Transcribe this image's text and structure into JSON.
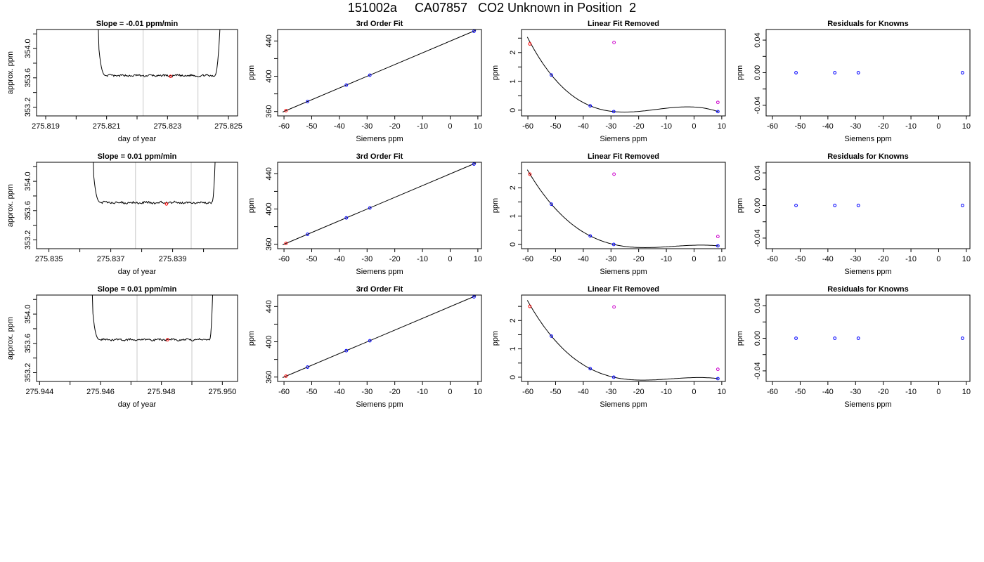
{
  "title": "151002a     CA07857   CO2 Unknown in Position  2",
  "colors": {
    "trace": "#000000",
    "known": "#0000ff",
    "reference": "#ff0000",
    "unknown": "#cc00cc",
    "window": "#c8c8c8"
  },
  "chart_data": [
    {
      "type": "line",
      "title": "Slope =  -0.01  ppm/min",
      "xlabel": "day of year",
      "ylabel": "approx. ppm",
      "xlim": [
        275.8187,
        275.8253
      ],
      "ylim": [
        353.08,
        354.26
      ],
      "xticks": [
        275.819,
        275.821,
        275.823,
        275.825
      ],
      "xminor": [
        275.82,
        275.822,
        275.824
      ],
      "yticks": [
        353.2,
        353.6,
        354.0
      ],
      "yminor": [
        353.4,
        353.8,
        354.2
      ],
      "trace": {
        "start": 275.8207,
        "level_start": 275.821,
        "level_end": 275.82455,
        "end": 275.82475,
        "level": 353.63,
        "noise": 0.012
      },
      "window_lines": [
        275.8222,
        275.824
      ],
      "mean_point": {
        "x": 275.8231,
        "y": 353.62
      }
    },
    {
      "type": "scatter",
      "title": "3rd Order Fit",
      "xlabel": "Siemens ppm",
      "ylabel": "ppm",
      "xlim": [
        -62.3,
        11.3
      ],
      "ylim": [
        355.0,
        453.0
      ],
      "xticks": [
        -60,
        -50,
        -40,
        -30,
        -20,
        -10,
        0,
        10
      ],
      "yticks": [
        360,
        400,
        440
      ],
      "yminor": [
        380,
        420
      ],
      "fit_line": [
        [
          -60.5,
          359.4
        ],
        [
          9.3,
          452.2
        ]
      ],
      "knowns": [
        [
          -51.5,
          371.3
        ],
        [
          -37.5,
          389.9
        ],
        [
          -29.0,
          401.2
        ],
        [
          8.6,
          451.0
        ]
      ],
      "reference": [
        [
          -59.3,
          361.0
        ]
      ]
    },
    {
      "type": "scatter",
      "title": "Linear Fit Removed",
      "xlabel": "Siemens ppm",
      "ylabel": "ppm",
      "xlim": [
        -62.3,
        11.3
      ],
      "ylim": [
        -0.2,
        2.8
      ],
      "xticks": [
        -60,
        -50,
        -40,
        -30,
        -20,
        -10,
        0,
        10
      ],
      "yticks": [
        0.0,
        1.0,
        2.0
      ],
      "yminor": [
        0.5,
        1.5,
        2.5
      ],
      "curve_points": [
        [
          -51.5,
          1.22
        ],
        [
          -37.5,
          0.15
        ],
        [
          -29.0,
          -0.05
        ],
        [
          8.6,
          -0.05
        ]
      ],
      "curve_range": [
        -60.2,
        8.8
      ],
      "knowns": [
        [
          -51.5,
          1.22
        ],
        [
          -37.5,
          0.15
        ],
        [
          -29.0,
          -0.05
        ],
        [
          8.6,
          -0.05
        ]
      ],
      "reference": [
        [
          -59.3,
          2.3
        ]
      ],
      "unknowns": [
        [
          -28.9,
          2.35
        ],
        [
          8.6,
          0.27
        ]
      ]
    },
    {
      "type": "scatter",
      "title": "Residuals for Knowns",
      "xlabel": "Siemens ppm",
      "ylabel": "ppm",
      "xlim": [
        -62.3,
        11.3
      ],
      "ylim": [
        -0.053,
        0.053
      ],
      "xticks": [
        -60,
        -50,
        -40,
        -30,
        -20,
        -10,
        0,
        10
      ],
      "yticks": [
        -0.04,
        0.0,
        0.04
      ],
      "yminor": [
        -0.02,
        0.02
      ],
      "knowns": [
        [
          -51.5,
          0.0
        ],
        [
          -37.5,
          0.0
        ],
        [
          -29.0,
          0.0
        ],
        [
          8.6,
          0.0
        ]
      ]
    },
    {
      "type": "line",
      "title": "Slope =  0.01  ppm/min",
      "xlabel": "day of year",
      "ylabel": "approx. ppm",
      "xlim": [
        275.8346,
        275.8411
      ],
      "ylim": [
        353.08,
        354.26
      ],
      "xticks": [
        275.835,
        275.837,
        275.839
      ],
      "xminor": [
        275.836,
        275.838,
        275.84
      ],
      "yticks": [
        353.2,
        353.6,
        354.0
      ],
      "yminor": [
        353.4,
        353.8,
        354.2
      ],
      "trace": {
        "start": 275.8364,
        "level_start": 275.8367,
        "level_end": 275.84027,
        "end": 275.8404,
        "level": 353.71,
        "noise": 0.014
      },
      "window_lines": [
        275.8378,
        275.8396
      ],
      "mean_point": {
        "x": 275.8388,
        "y": 353.69
      }
    },
    {
      "type": "scatter",
      "title": "3rd Order Fit",
      "xlabel": "Siemens ppm",
      "ylabel": "ppm",
      "xlim": [
        -62.3,
        11.3
      ],
      "ylim": [
        355.0,
        453.0
      ],
      "xticks": [
        -60,
        -50,
        -40,
        -30,
        -20,
        -10,
        0,
        10
      ],
      "yticks": [
        360,
        400,
        440
      ],
      "yminor": [
        380,
        420
      ],
      "fit_line": [
        [
          -60.5,
          359.4
        ],
        [
          9.3,
          452.2
        ]
      ],
      "knowns": [
        [
          -51.5,
          371.3
        ],
        [
          -37.5,
          389.9
        ],
        [
          -29.0,
          401.2
        ],
        [
          8.6,
          451.0
        ]
      ],
      "reference": [
        [
          -59.3,
          361.0
        ]
      ]
    },
    {
      "type": "scatter",
      "title": "Linear Fit Removed",
      "xlabel": "Siemens ppm",
      "ylabel": "ppm",
      "xlim": [
        -62.3,
        11.3
      ],
      "ylim": [
        -0.15,
        2.9
      ],
      "xticks": [
        -60,
        -50,
        -40,
        -30,
        -20,
        -10,
        0,
        10
      ],
      "yticks": [
        0.0,
        1.0,
        2.0
      ],
      "yminor": [
        0.5,
        1.5,
        2.5
      ],
      "curve_points": [
        [
          -51.5,
          1.42
        ],
        [
          -37.5,
          0.3
        ],
        [
          -29.0,
          0.0
        ],
        [
          8.6,
          -0.05
        ]
      ],
      "curve_range": [
        -60.2,
        8.8
      ],
      "knowns": [
        [
          -51.5,
          1.42
        ],
        [
          -37.5,
          0.3
        ],
        [
          -29.0,
          0.0
        ],
        [
          8.6,
          -0.05
        ]
      ],
      "reference": [
        [
          -59.3,
          2.48
        ]
      ],
      "unknowns": [
        [
          -28.9,
          2.48
        ],
        [
          8.6,
          0.28
        ]
      ]
    },
    {
      "type": "scatter",
      "title": "Residuals for Knowns",
      "xlabel": "Siemens ppm",
      "ylabel": "ppm",
      "xlim": [
        -62.3,
        11.3
      ],
      "ylim": [
        -0.053,
        0.053
      ],
      "xticks": [
        -60,
        -50,
        -40,
        -30,
        -20,
        -10,
        0,
        10
      ],
      "yticks": [
        -0.04,
        0.0,
        0.04
      ],
      "yminor": [
        -0.02,
        0.02
      ],
      "knowns": [
        [
          -51.5,
          0.0
        ],
        [
          -37.5,
          0.0
        ],
        [
          -29.0,
          0.0
        ],
        [
          8.6,
          0.0
        ]
      ]
    },
    {
      "type": "line",
      "title": "Slope =  0.01  ppm/min",
      "xlabel": "day of year",
      "ylabel": "approx. ppm",
      "xlim": [
        275.9439,
        275.9505
      ],
      "ylim": [
        353.08,
        354.26
      ],
      "xticks": [
        275.944,
        275.946,
        275.948,
        275.95
      ],
      "xminor": [
        275.945,
        275.947,
        275.949
      ],
      "yticks": [
        353.2,
        353.6,
        354.0
      ],
      "yminor": [
        353.4,
        353.8,
        354.2
      ],
      "trace": {
        "start": 275.9457,
        "level_start": 275.946,
        "level_end": 275.94958,
        "end": 275.9497,
        "level": 353.65,
        "noise": 0.012
      },
      "window_lines": [
        275.9472,
        275.949
      ],
      "mean_point": {
        "x": 275.9482,
        "y": 353.65
      }
    },
    {
      "type": "scatter",
      "title": "3rd Order Fit",
      "xlabel": "Siemens ppm",
      "ylabel": "ppm",
      "xlim": [
        -62.3,
        11.3
      ],
      "ylim": [
        355.0,
        453.0
      ],
      "xticks": [
        -60,
        -50,
        -40,
        -30,
        -20,
        -10,
        0,
        10
      ],
      "yticks": [
        360,
        400,
        440
      ],
      "yminor": [
        380,
        420
      ],
      "fit_line": [
        [
          -60.5,
          359.4
        ],
        [
          9.3,
          452.2
        ]
      ],
      "knowns": [
        [
          -51.5,
          371.3
        ],
        [
          -37.5,
          389.9
        ],
        [
          -29.0,
          401.2
        ],
        [
          8.6,
          451.0
        ]
      ],
      "reference": [
        [
          -59.3,
          361.0
        ]
      ]
    },
    {
      "type": "scatter",
      "title": "Linear Fit Removed",
      "xlabel": "Siemens ppm",
      "ylabel": "ppm",
      "xlim": [
        -62.3,
        11.3
      ],
      "ylim": [
        -0.15,
        2.9
      ],
      "xticks": [
        -60,
        -50,
        -40,
        -30,
        -20,
        -10,
        0,
        10
      ],
      "yticks": [
        0.0,
        1.0,
        2.0
      ],
      "yminor": [
        0.5,
        1.5,
        2.5
      ],
      "curve_points": [
        [
          -51.5,
          1.45
        ],
        [
          -37.5,
          0.3
        ],
        [
          -29.0,
          0.0
        ],
        [
          8.6,
          -0.05
        ]
      ],
      "curve_range": [
        -60.2,
        8.8
      ],
      "knowns": [
        [
          -51.5,
          1.45
        ],
        [
          -37.5,
          0.3
        ],
        [
          -29.0,
          0.0
        ],
        [
          8.6,
          -0.05
        ]
      ],
      "reference": [
        [
          -59.3,
          2.5
        ]
      ],
      "unknowns": [
        [
          -28.9,
          2.48
        ],
        [
          8.6,
          0.28
        ]
      ]
    },
    {
      "type": "scatter",
      "title": "Residuals for Knowns",
      "xlabel": "Siemens ppm",
      "ylabel": "ppm",
      "xlim": [
        -62.3,
        11.3
      ],
      "ylim": [
        -0.053,
        0.053
      ],
      "xticks": [
        -60,
        -50,
        -40,
        -30,
        -20,
        -10,
        0,
        10
      ],
      "yticks": [
        -0.04,
        0.0,
        0.04
      ],
      "yminor": [
        -0.02,
        0.02
      ],
      "knowns": [
        [
          -51.5,
          0.0
        ],
        [
          -37.5,
          0.0
        ],
        [
          -29.0,
          0.0
        ],
        [
          8.6,
          0.0
        ]
      ]
    }
  ]
}
